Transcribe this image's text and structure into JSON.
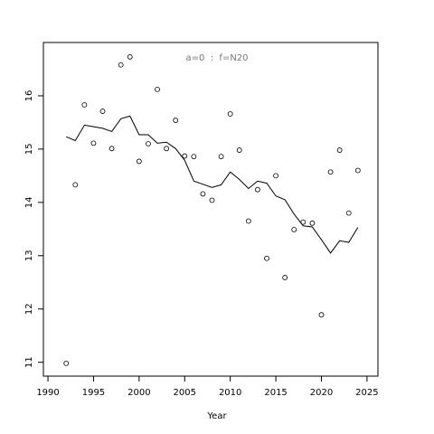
{
  "chart_data": {
    "type": "scatter",
    "annotation": "a=0  :  f=N20",
    "xlabel": "Year",
    "x": [
      1992,
      1993,
      1994,
      1995,
      1996,
      1997,
      1998,
      1999,
      2000,
      2001,
      2002,
      2003,
      2004,
      2005,
      2006,
      2007,
      2008,
      2009,
      2010,
      2011,
      2012,
      2013,
      2014,
      2015,
      2016,
      2017,
      2018,
      2019,
      2020,
      2021,
      2022,
      2023,
      2024
    ],
    "series": [
      {
        "mode": "points",
        "color": "#000000",
        "values": [
          10.98,
          14.33,
          15.83,
          15.11,
          15.71,
          15.01,
          16.58,
          16.73,
          14.77,
          15.1,
          16.12,
          15.01,
          15.54,
          14.87,
          14.86,
          14.16,
          14.04,
          14.86,
          15.66,
          14.98,
          13.65,
          14.24,
          12.95,
          14.5,
          12.59,
          13.49,
          13.63,
          13.61,
          11.89,
          14.57,
          14.98,
          13.8,
          14.6
        ]
      },
      {
        "mode": "line",
        "color": "#000000",
        "values": [
          15.23,
          15.16,
          15.45,
          15.42,
          15.39,
          15.33,
          15.57,
          15.62,
          15.27,
          15.27,
          15.11,
          15.13,
          15.01,
          14.79,
          14.4,
          14.34,
          14.28,
          14.33,
          14.57,
          14.43,
          14.26,
          14.4,
          14.36,
          14.12,
          14.05,
          13.78,
          13.56,
          13.54,
          13.3,
          13.05,
          13.28,
          13.25,
          13.53
        ]
      }
    ],
    "xlim": [
      1989.5,
      2026.2
    ],
    "xticks": [
      1990,
      1995,
      2000,
      2005,
      2010,
      2015,
      2020,
      2025
    ],
    "ylim": [
      10.74,
      17.0
    ],
    "yticks": [
      11,
      12,
      13,
      14,
      15,
      16
    ]
  }
}
